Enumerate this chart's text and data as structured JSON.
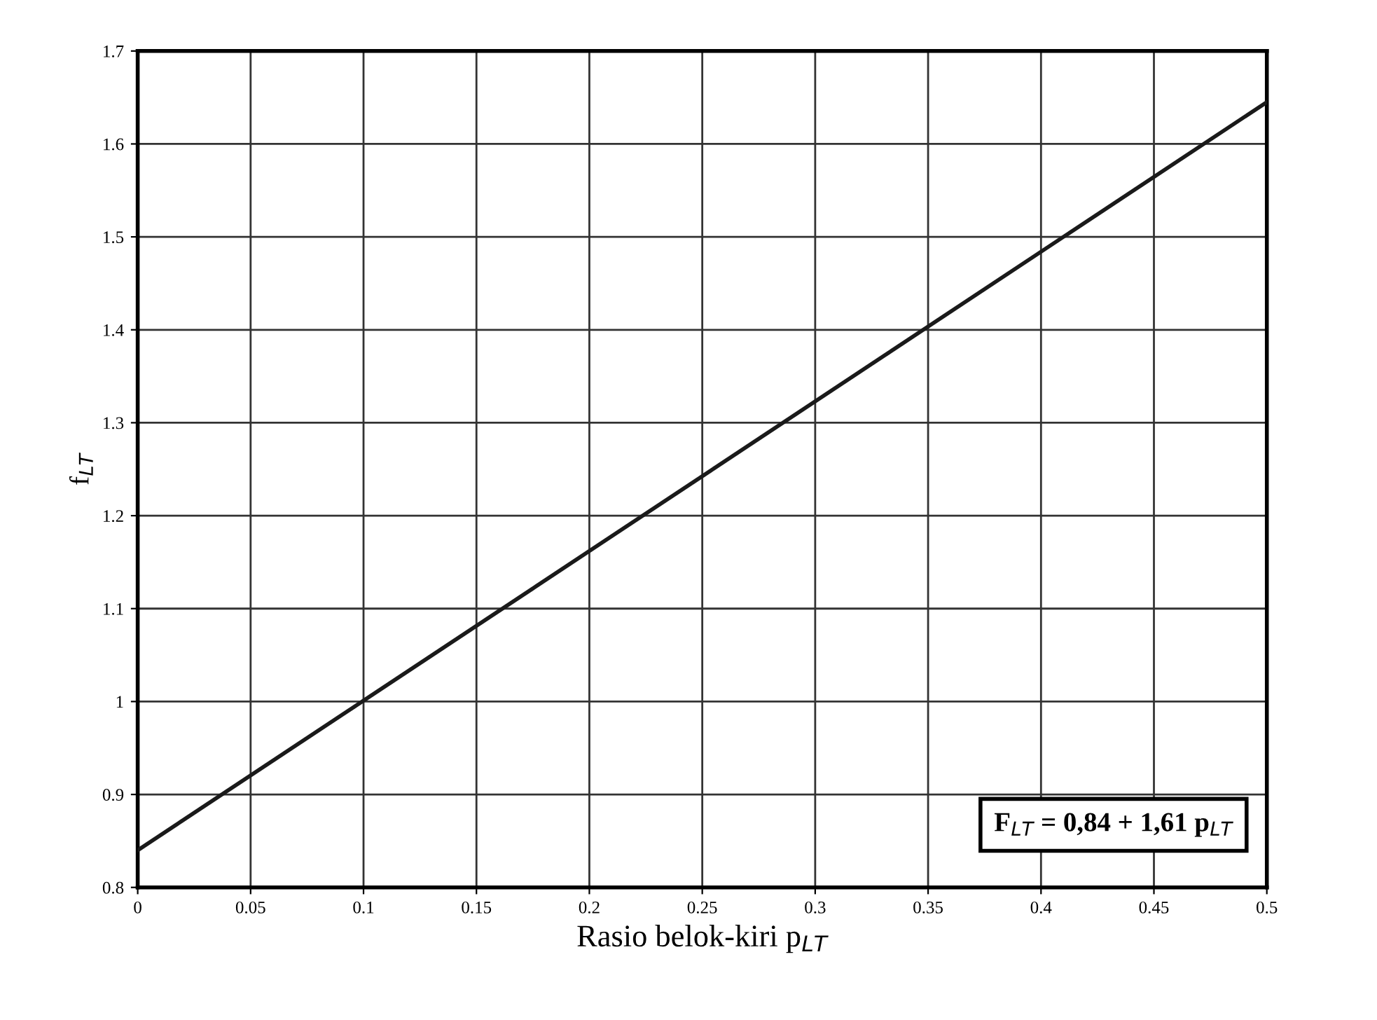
{
  "chart_data": {
    "type": "line",
    "xlabel": "Rasio belok-kiri p$_{LT}$",
    "ylabel": "f$_{LT}$",
    "series": [
      {
        "color": "#1a1a1a",
        "x": [
          0,
          0.5
        ],
        "values": [
          0.84,
          1.645
        ]
      }
    ],
    "xlim": [
      0,
      0.5
    ],
    "ylim": [
      0.8,
      1.7
    ],
    "xticks": [
      0,
      {
        "value": 0.05,
        "label": "0.05"
      },
      {
        "value": 0.1,
        "label": "0.1"
      },
      {
        "value": 0.15,
        "label": "0.15"
      },
      {
        "value": 0.2,
        "label": "0.2"
      },
      {
        "value": 0.25,
        "label": "0.25"
      },
      {
        "value": 0.3,
        "label": "0.3"
      },
      {
        "value": 0.35,
        "label": "0.35"
      },
      {
        "value": 0.4,
        "label": "0.4"
      },
      {
        "value": 0.45,
        "label": "0.45"
      },
      {
        "value": 0.5,
        "label": "0.5"
      }
    ],
    "yticks": [
      {
        "value": 0.8,
        "label": "0.8"
      },
      {
        "value": 0.9,
        "label": "0.9"
      },
      1,
      {
        "value": 1.1,
        "label": "1.1"
      },
      {
        "value": 1.2,
        "label": "1.2"
      },
      {
        "value": 1.3,
        "label": "1.3"
      },
      {
        "value": 1.4,
        "label": "1.4"
      },
      {
        "value": 1.5,
        "label": "1.5"
      },
      {
        "value": 1.6,
        "label": "1.6"
      },
      {
        "value": 1.7,
        "label": "1.7"
      }
    ],
    "annotations": [
      "F$_{LT}$ = 0,84 + 1,61 p$_{LT}$"
    ],
    "grid": true,
    "marker": "none",
    "line_style": "solid"
  }
}
